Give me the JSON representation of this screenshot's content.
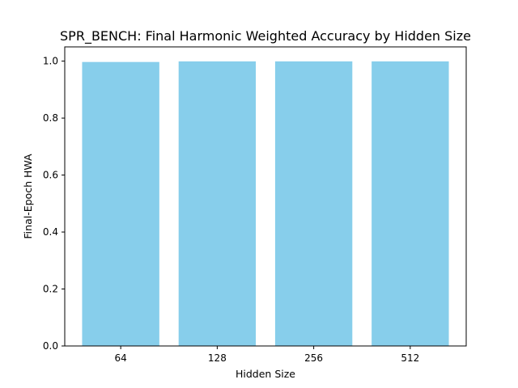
{
  "chart_data": {
    "type": "bar",
    "title": "SPR_BENCH: Final Harmonic Weighted Accuracy by Hidden Size",
    "xlabel": "Hidden Size",
    "ylabel": "Final-Epoch HWA",
    "categories": [
      "64",
      "128",
      "256",
      "512"
    ],
    "values": [
      0.997,
      0.999,
      0.999,
      0.999
    ],
    "ylim": [
      0,
      1.05
    ],
    "yticks": [
      0.0,
      0.2,
      0.4,
      0.6,
      0.8,
      1.0
    ],
    "ytick_labels": [
      "0.0",
      "0.2",
      "0.4",
      "0.6",
      "0.8",
      "1.0"
    ],
    "bar_color": "#87ceeb",
    "grid": false,
    "legend": "none"
  }
}
